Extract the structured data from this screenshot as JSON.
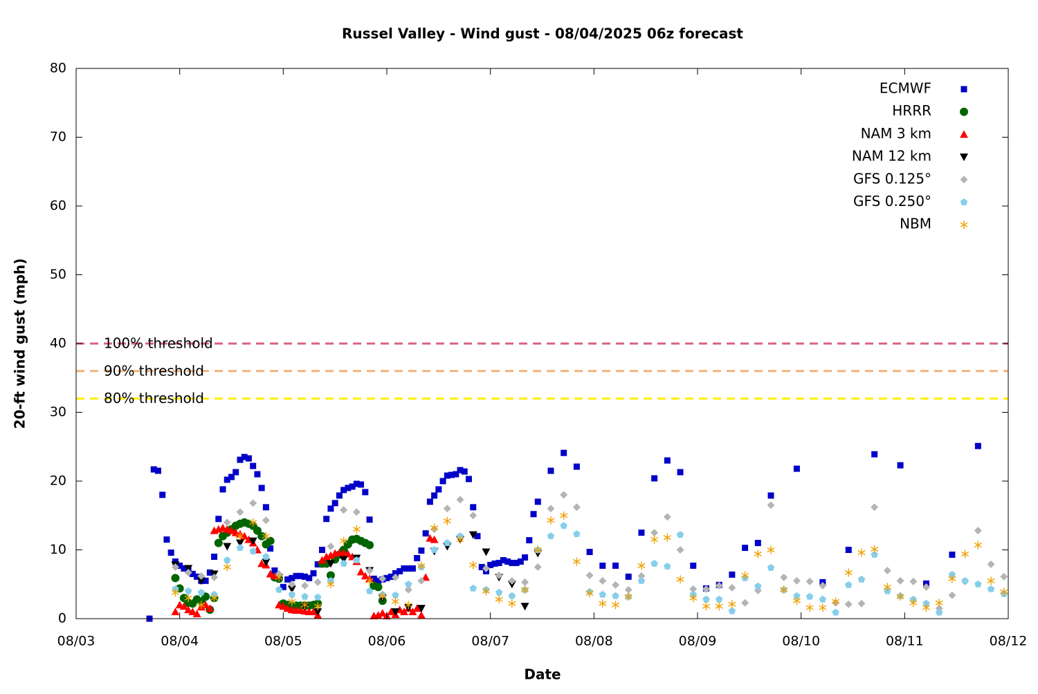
{
  "chart_data": {
    "type": "scatter",
    "title": "Russel Valley - Wind gust - 08/04/2025 06z forecast",
    "x_label": "Date",
    "y_label": "20-ft wind gust (mph)",
    "xlim": [
      0,
      216
    ],
    "xticks": [
      {
        "value": 0,
        "label": "08/03"
      },
      {
        "value": 24,
        "label": "08/04"
      },
      {
        "value": 48,
        "label": "08/05"
      },
      {
        "value": 72,
        "label": "08/06"
      },
      {
        "value": 96,
        "label": "08/07"
      },
      {
        "value": 120,
        "label": "08/08"
      },
      {
        "value": 144,
        "label": "08/09"
      },
      {
        "value": 168,
        "label": "08/10"
      },
      {
        "value": 192,
        "label": "08/11"
      },
      {
        "value": 216,
        "label": "08/12"
      }
    ],
    "ylim": [
      0,
      80
    ],
    "yticks": [
      0,
      10,
      20,
      30,
      40,
      50,
      60,
      70,
      80
    ],
    "legend": "upper right",
    "thresholds": [
      {
        "label": "100% threshold",
        "value": 40,
        "color": "#d9627e"
      },
      {
        "label": "90% threshold",
        "value": 36,
        "color": "#f2b27a"
      },
      {
        "label": "80% threshold",
        "value": 32,
        "color": "#ffee00"
      }
    ],
    "series": [
      {
        "name": "ECMWF",
        "color": "#0000c8",
        "marker": "square",
        "x": [
          17,
          18,
          19,
          20,
          21,
          22,
          23,
          24,
          25,
          26,
          27,
          28,
          29,
          30,
          31,
          32,
          33,
          34,
          35,
          36,
          37,
          38,
          39,
          40,
          41,
          42,
          43,
          44,
          45,
          46,
          47,
          48,
          49,
          50,
          51,
          52,
          53,
          54,
          55,
          56,
          57,
          58,
          59,
          60,
          61,
          62,
          63,
          64,
          65,
          66,
          67,
          68,
          69,
          70,
          71,
          72,
          73,
          74,
          75,
          76,
          77,
          78,
          79,
          80,
          81,
          82,
          83,
          84,
          85,
          86,
          87,
          88,
          89,
          90,
          91,
          92,
          93,
          94,
          95,
          96,
          97,
          98,
          99,
          100,
          101,
          102,
          103,
          104,
          105,
          106,
          107,
          110,
          113,
          116,
          119,
          122,
          125,
          128,
          131,
          134,
          137,
          140,
          143,
          146,
          149,
          152,
          155,
          158,
          161,
          167,
          173,
          179,
          185,
          191,
          197,
          203,
          209
        ],
        "values": [
          0,
          21.7,
          21.5,
          18.0,
          11.5,
          9.6,
          8.3,
          7.7,
          7.3,
          7.0,
          6.5,
          6.1,
          5.5,
          5.5,
          6.7,
          9.0,
          14.5,
          18.8,
          20.2,
          20.6,
          21.3,
          23.1,
          23.5,
          23.3,
          22.2,
          21.0,
          19.0,
          16.2,
          10.2,
          7.0,
          6.1,
          4.6,
          5.7,
          5.9,
          6.2,
          6.2,
          6.1,
          5.9,
          6.6,
          7.9,
          10.0,
          14.5,
          16.0,
          16.8,
          17.9,
          18.7,
          19.0,
          19.2,
          19.6,
          19.5,
          18.4,
          14.4,
          5.8,
          5.5,
          5.7,
          5.9,
          6.1,
          6.6,
          6.9,
          7.3,
          7.3,
          7.3,
          8.8,
          9.9,
          12.4,
          17.0,
          17.9,
          18.8,
          20.0,
          20.8,
          20.9,
          21.0,
          21.6,
          21.4,
          20.3,
          16.2,
          12.0,
          7.5,
          6.9,
          7.8,
          8.0,
          8.1,
          8.5,
          8.3,
          8.1,
          8.1,
          8.3,
          8.9,
          11.4,
          15.2,
          17.0,
          21.5,
          24.1,
          22.1,
          9.7,
          7.7,
          7.7,
          6.1,
          12.5,
          20.4,
          23.0,
          21.3,
          7.7,
          4.4,
          4.9,
          6.4,
          10.3,
          11.0,
          17.9,
          21.8,
          5.3,
          10.0,
          23.9,
          22.3,
          5.1,
          9.3,
          25.1
        ]
      },
      {
        "name": "HRRR",
        "color": "#006400",
        "marker": "circle",
        "x": [
          23,
          24,
          25,
          26,
          27,
          28,
          29,
          30,
          31,
          32,
          33,
          34,
          35,
          36,
          37,
          38,
          39,
          40,
          41,
          42,
          43,
          44,
          45,
          46,
          47,
          48,
          49,
          50,
          51,
          52,
          53,
          54,
          55,
          56,
          57,
          58,
          59,
          60,
          61,
          62,
          63,
          64,
          65,
          66,
          67,
          68,
          69,
          70,
          71
        ],
        "values": [
          5.9,
          4.4,
          3.0,
          2.3,
          2.2,
          2.8,
          2.5,
          3.2,
          1.3,
          3.0,
          11.0,
          12.0,
          12.5,
          13.0,
          13.5,
          13.8,
          14.0,
          13.8,
          13.5,
          12.8,
          12.0,
          10.8,
          11.3,
          6.0,
          5.8,
          2.2,
          2.0,
          1.9,
          1.9,
          1.9,
          1.9,
          1.9,
          2.0,
          2.2,
          8.0,
          8.0,
          6.3,
          8.6,
          9.3,
          10.0,
          10.8,
          11.5,
          11.6,
          11.3,
          11.0,
          10.7,
          4.8,
          4.6,
          2.6
        ]
      },
      {
        "name": "NAM 3 km",
        "color": "#ff0000",
        "marker": "triangle-up",
        "x": [
          23,
          24,
          25,
          26,
          27,
          28,
          29,
          30,
          31,
          32,
          33,
          34,
          35,
          36,
          37,
          38,
          39,
          40,
          41,
          42,
          43,
          44,
          45,
          46,
          47,
          48,
          49,
          50,
          51,
          52,
          53,
          54,
          55,
          56,
          57,
          58,
          59,
          60,
          61,
          62,
          63,
          64,
          65,
          66,
          67,
          68,
          69,
          70,
          71,
          72,
          73,
          74,
          75,
          76,
          77,
          78,
          79,
          80,
          81,
          82,
          83
        ],
        "values": [
          1.0,
          2.0,
          1.8,
          1.3,
          1.0,
          0.7,
          1.7,
          2.0,
          1.5,
          12.8,
          13.0,
          13.2,
          13.0,
          12.8,
          12.5,
          12.3,
          12.0,
          11.5,
          11.0,
          10.0,
          8.0,
          7.8,
          6.5,
          6.2,
          2.0,
          1.8,
          1.5,
          1.3,
          1.2,
          1.2,
          1.1,
          1.0,
          1.0,
          0.5,
          8.5,
          9.0,
          9.2,
          9.5,
          9.6,
          9.5,
          9.4,
          9.0,
          8.3,
          6.8,
          6.2,
          5.8,
          0.4,
          0.5,
          0.8,
          0.4,
          1.0,
          0.6,
          1.3,
          1.0,
          1.5,
          1.0,
          1.5,
          0.5,
          6.0,
          11.7,
          11.5
        ]
      },
      {
        "name": "NAM 12 km",
        "color": "#000000",
        "marker": "triangle-down",
        "x": [
          23,
          26,
          29,
          32,
          35,
          38,
          41,
          44,
          47,
          50,
          53,
          56,
          59,
          62,
          65,
          68,
          71,
          74,
          77,
          80,
          83,
          86,
          89,
          92,
          95,
          98,
          101,
          104,
          107
        ],
        "values": [
          7.8,
          7.3,
          5.5,
          6.5,
          10.5,
          11.0,
          11.3,
          8.2,
          6.0,
          4.3,
          1.8,
          1.0,
          8.0,
          8.6,
          8.8,
          7.0,
          3.0,
          1.0,
          1.6,
          1.5,
          9.8,
          10.5,
          11.5,
          12.2,
          9.7,
          6.0,
          5.0,
          1.8,
          9.5
        ]
      },
      {
        "name": "GFS 0.125°",
        "color": "#b4b4b4",
        "marker": "diamond",
        "x": [
          23,
          26,
          29,
          32,
          35,
          38,
          41,
          44,
          47,
          50,
          53,
          56,
          59,
          62,
          65,
          68,
          71,
          74,
          77,
          80,
          83,
          86,
          89,
          92,
          95,
          98,
          101,
          104,
          107,
          110,
          113,
          116,
          119,
          122,
          125,
          128,
          131,
          134,
          137,
          140,
          143,
          146,
          149,
          152,
          155,
          158,
          161,
          164,
          167,
          170,
          173,
          176,
          179,
          182,
          185,
          188,
          191,
          194,
          197,
          200,
          203,
          206,
          209,
          212,
          215
        ],
        "values": [
          7.5,
          6.7,
          6.2,
          6.0,
          14.0,
          15.5,
          16.8,
          14.3,
          6.5,
          5.0,
          4.8,
          5.3,
          10.5,
          15.8,
          15.5,
          7.0,
          5.8,
          6.0,
          4.2,
          5.5,
          13.0,
          16.0,
          17.3,
          15.0,
          7.3,
          6.3,
          5.5,
          5.3,
          7.5,
          16.0,
          18.0,
          16.2,
          6.3,
          5.5,
          4.9,
          4.2,
          6.2,
          12.5,
          14.8,
          10.0,
          4.3,
          4.3,
          4.8,
          4.5,
          2.3,
          4.1,
          16.5,
          6.0,
          5.5,
          5.4,
          4.8,
          2.3,
          2.1,
          2.2,
          16.2,
          7.0,
          5.5,
          5.4,
          4.6,
          1.5,
          3.4,
          5.4,
          12.8,
          7.9,
          6.1
        ]
      },
      {
        "name": "GFS 0.250°",
        "color": "#87ceeb",
        "marker": "pentagon",
        "x": [
          23,
          26,
          29,
          32,
          35,
          38,
          41,
          44,
          47,
          50,
          53,
          56,
          59,
          62,
          65,
          68,
          71,
          74,
          77,
          80,
          83,
          86,
          89,
          92,
          95,
          98,
          101,
          104,
          107,
          110,
          113,
          116,
          119,
          122,
          125,
          128,
          131,
          134,
          137,
          140,
          143,
          146,
          149,
          152,
          155,
          158,
          161,
          164,
          167,
          170,
          173,
          176,
          179,
          182,
          185,
          188,
          191,
          194,
          197,
          200,
          203,
          206,
          209,
          212,
          215
        ],
        "values": [
          4.3,
          4.0,
          3.8,
          3.5,
          8.5,
          10.3,
          9.8,
          9.0,
          4.2,
          3.5,
          3.2,
          3.1,
          5.5,
          8.0,
          8.5,
          4.0,
          3.5,
          3.4,
          5.0,
          7.5,
          10.0,
          11.0,
          12.0,
          4.4,
          4.2,
          3.8,
          3.3,
          4.2,
          10.0,
          12.0,
          13.5,
          12.3,
          3.9,
          3.5,
          3.3,
          3.2,
          5.5,
          8.0,
          7.6,
          12.2,
          3.5,
          2.8,
          2.8,
          1.1,
          5.9,
          4.7,
          7.4,
          4.2,
          3.3,
          3.2,
          2.8,
          0.9,
          4.9,
          5.7,
          9.3,
          4.0,
          3.3,
          2.8,
          2.2,
          0.9,
          6.4,
          5.5,
          5.0,
          4.3,
          3.6
        ]
      },
      {
        "name": "NBM",
        "color": "#f0a000",
        "marker": "asterisk",
        "x": [
          23,
          26,
          29,
          32,
          35,
          38,
          41,
          44,
          47,
          50,
          53,
          56,
          59,
          62,
          65,
          68,
          71,
          74,
          77,
          80,
          83,
          86,
          89,
          92,
          95,
          98,
          101,
          104,
          107,
          110,
          113,
          116,
          119,
          122,
          125,
          128,
          131,
          134,
          137,
          140,
          143,
          146,
          149,
          152,
          155,
          158,
          161,
          164,
          167,
          170,
          173,
          176,
          179,
          182,
          185,
          188,
          191,
          194,
          197,
          200,
          203,
          206,
          209,
          212,
          215
        ],
        "values": [
          3.8,
          3.0,
          2.0,
          3.0,
          7.5,
          12.0,
          14.0,
          12.0,
          6.0,
          2.5,
          2.0,
          1.8,
          5.0,
          11.3,
          13.0,
          5.5,
          3.3,
          2.5,
          2.0,
          7.7,
          13.2,
          14.2,
          11.5,
          7.8,
          4.0,
          2.8,
          2.2,
          4.2,
          10.0,
          14.3,
          15.0,
          8.3,
          3.7,
          2.2,
          2.0,
          3.2,
          7.7,
          11.5,
          11.8,
          5.7,
          3.0,
          1.8,
          1.8,
          2.1,
          6.3,
          9.4,
          10.0,
          4.2,
          2.6,
          1.6,
          1.6,
          2.5,
          6.7,
          9.6,
          10.1,
          4.6,
          3.2,
          2.3,
          1.6,
          2.3,
          5.8,
          9.4,
          10.7,
          5.5,
          3.9
        ]
      }
    ]
  }
}
